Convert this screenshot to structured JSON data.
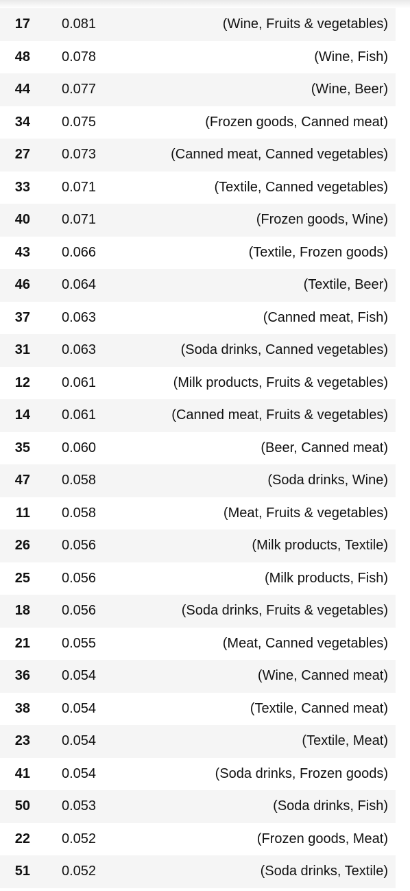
{
  "table": {
    "rows": [
      {
        "index": "17",
        "support": "0.081",
        "itemsets": "(Wine, Fruits & vegetables)"
      },
      {
        "index": "48",
        "support": "0.078",
        "itemsets": "(Wine, Fish)"
      },
      {
        "index": "44",
        "support": "0.077",
        "itemsets": "(Wine, Beer)"
      },
      {
        "index": "34",
        "support": "0.075",
        "itemsets": "(Frozen goods, Canned meat)"
      },
      {
        "index": "27",
        "support": "0.073",
        "itemsets": "(Canned meat, Canned vegetables)"
      },
      {
        "index": "33",
        "support": "0.071",
        "itemsets": "(Textile, Canned vegetables)"
      },
      {
        "index": "40",
        "support": "0.071",
        "itemsets": "(Frozen goods, Wine)"
      },
      {
        "index": "43",
        "support": "0.066",
        "itemsets": "(Textile, Frozen goods)"
      },
      {
        "index": "46",
        "support": "0.064",
        "itemsets": "(Textile, Beer)"
      },
      {
        "index": "37",
        "support": "0.063",
        "itemsets": "(Canned meat, Fish)"
      },
      {
        "index": "31",
        "support": "0.063",
        "itemsets": "(Soda drinks, Canned vegetables)"
      },
      {
        "index": "12",
        "support": "0.061",
        "itemsets": "(Milk products, Fruits & vegetables)"
      },
      {
        "index": "14",
        "support": "0.061",
        "itemsets": "(Canned meat, Fruits & vegetables)"
      },
      {
        "index": "35",
        "support": "0.060",
        "itemsets": "(Beer, Canned meat)"
      },
      {
        "index": "47",
        "support": "0.058",
        "itemsets": "(Soda drinks, Wine)"
      },
      {
        "index": "11",
        "support": "0.058",
        "itemsets": "(Meat, Fruits & vegetables)"
      },
      {
        "index": "26",
        "support": "0.056",
        "itemsets": "(Milk products, Textile)"
      },
      {
        "index": "25",
        "support": "0.056",
        "itemsets": "(Milk products, Fish)"
      },
      {
        "index": "18",
        "support": "0.056",
        "itemsets": "(Soda drinks, Fruits & vegetables)"
      },
      {
        "index": "21",
        "support": "0.055",
        "itemsets": "(Meat, Canned vegetables)"
      },
      {
        "index": "36",
        "support": "0.054",
        "itemsets": "(Wine, Canned meat)"
      },
      {
        "index": "38",
        "support": "0.054",
        "itemsets": "(Textile, Canned meat)"
      },
      {
        "index": "23",
        "support": "0.054",
        "itemsets": "(Textile, Meat)"
      },
      {
        "index": "41",
        "support": "0.054",
        "itemsets": "(Soda drinks, Frozen goods)"
      },
      {
        "index": "50",
        "support": "0.053",
        "itemsets": "(Soda drinks, Fish)"
      },
      {
        "index": "22",
        "support": "0.052",
        "itemsets": "(Frozen goods, Meat)"
      },
      {
        "index": "51",
        "support": "0.052",
        "itemsets": "(Soda drinks, Textile)"
      }
    ]
  }
}
